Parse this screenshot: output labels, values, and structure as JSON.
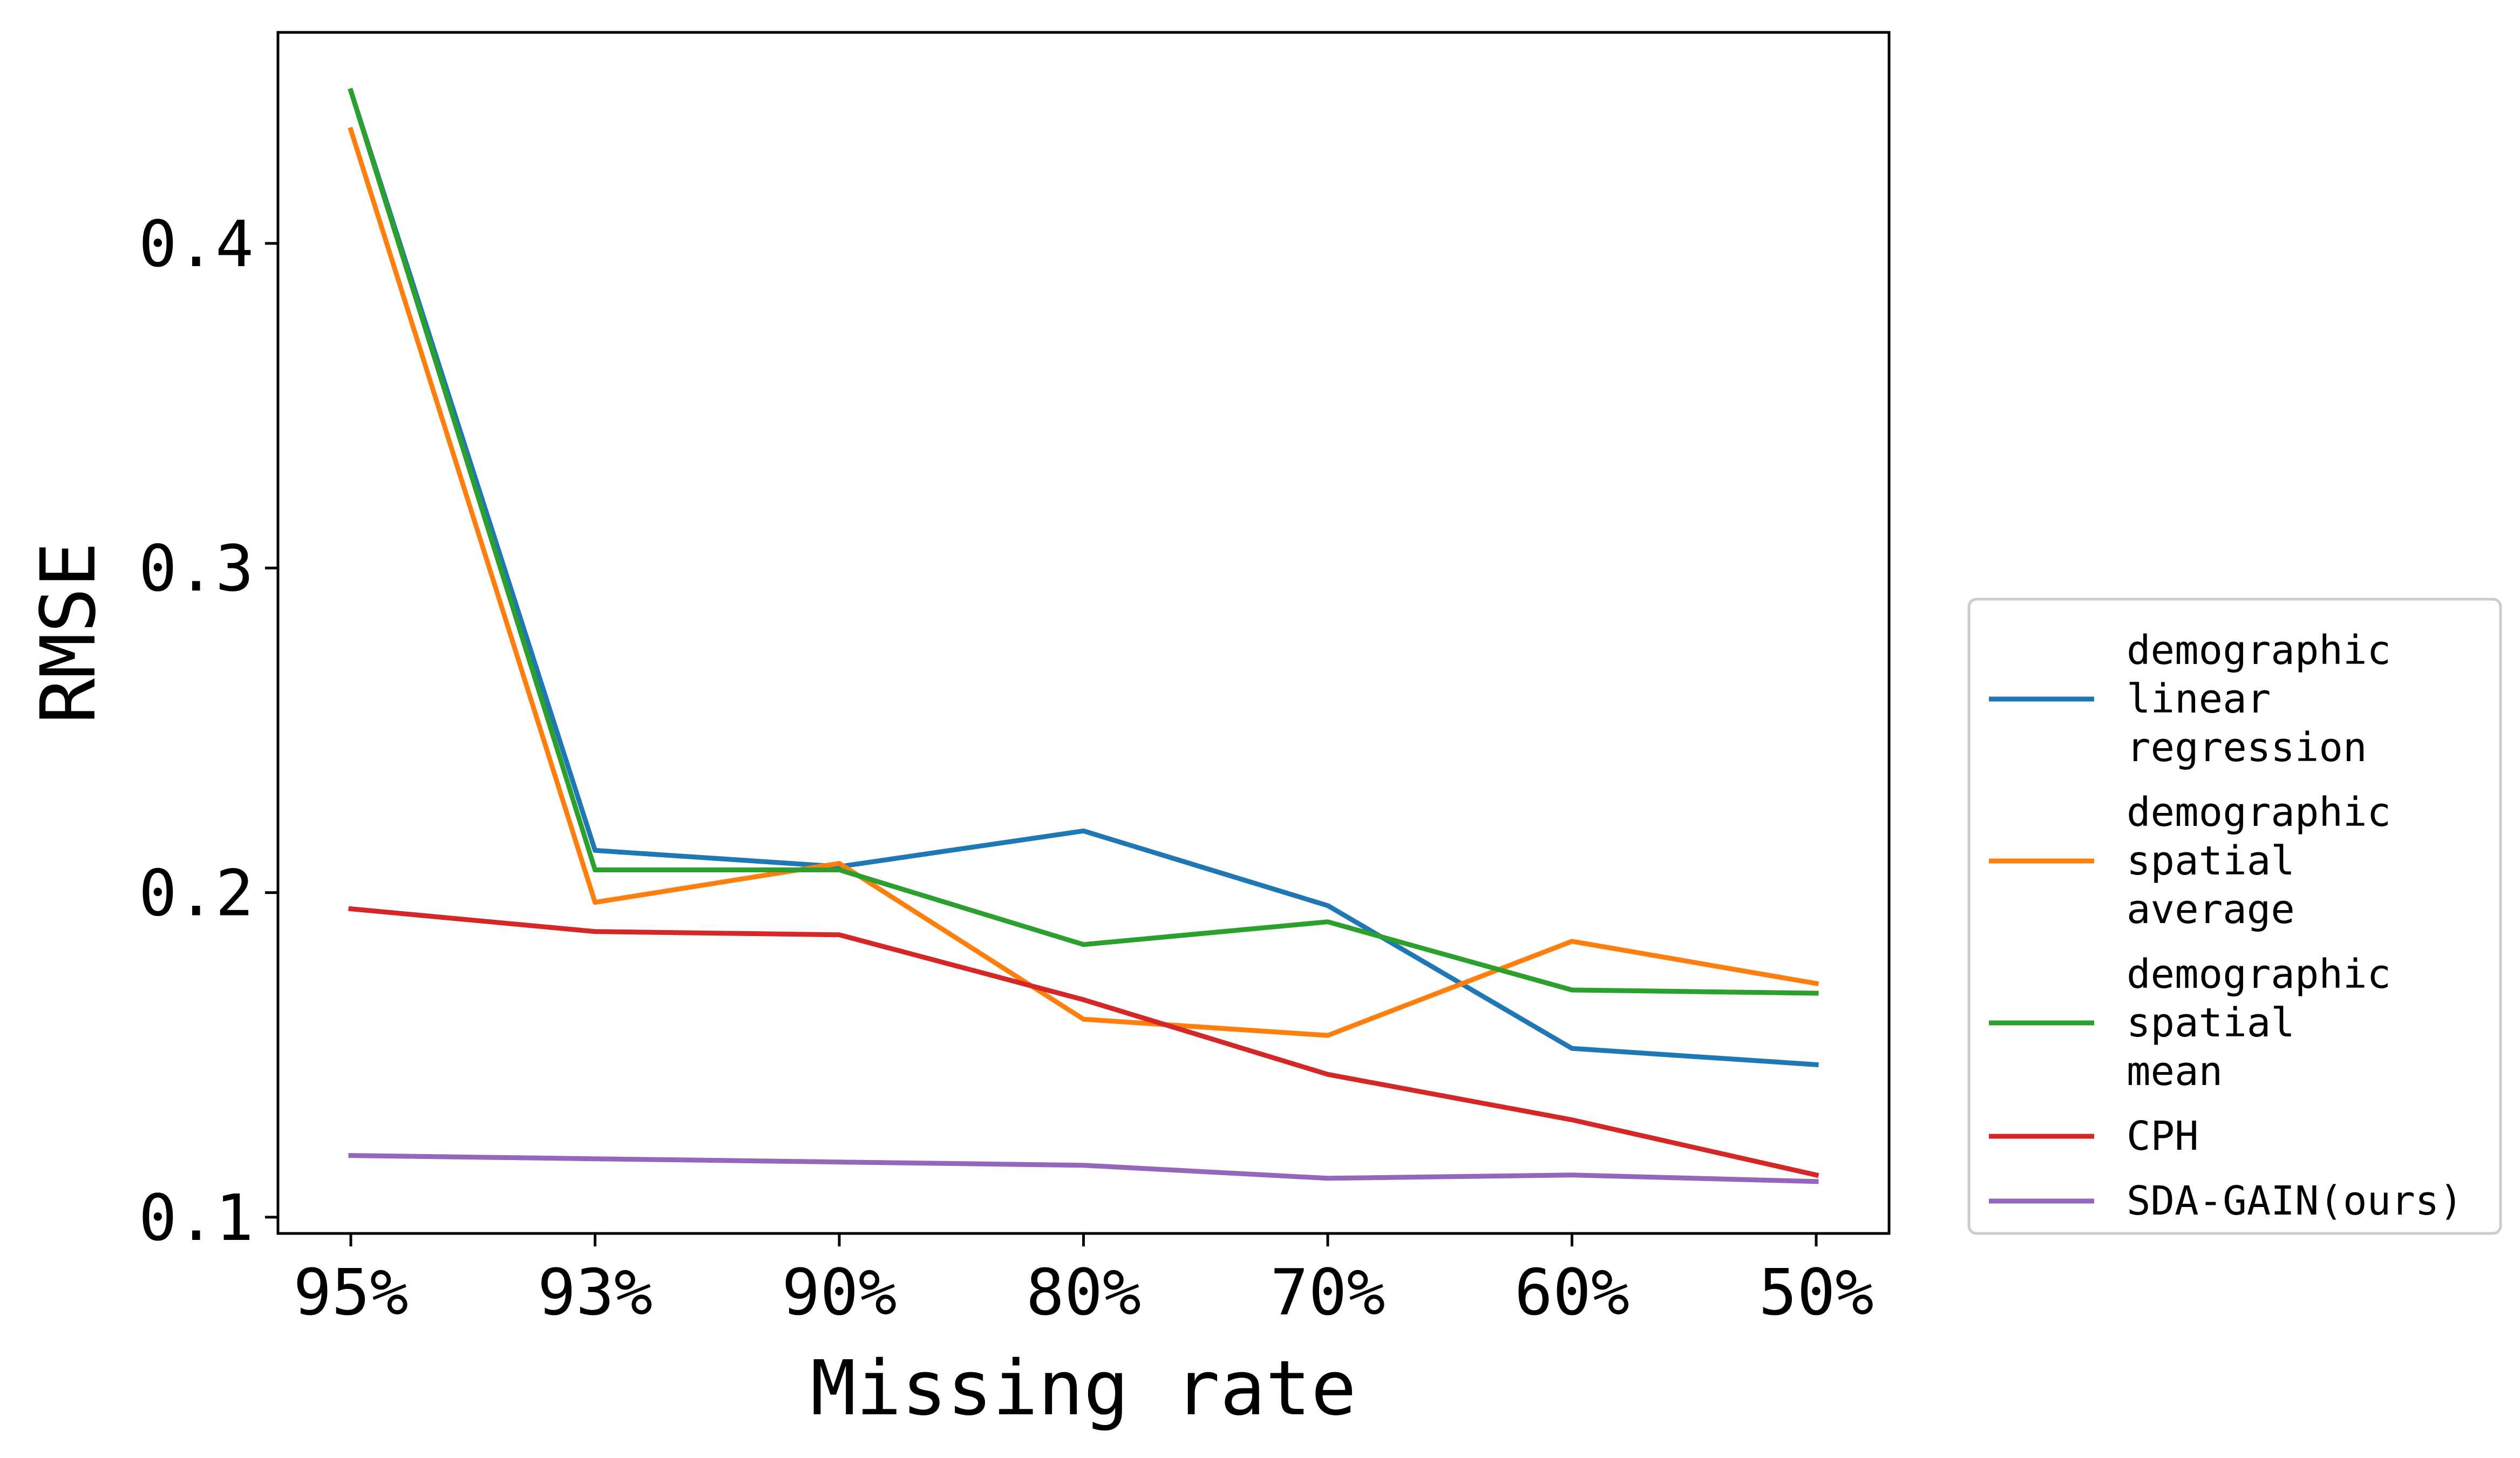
{
  "chart_data": {
    "type": "line",
    "xlabel": "Missing rate",
    "ylabel": "RMSE",
    "categories": [
      "95%",
      "93%",
      "90%",
      "80%",
      "70%",
      "60%",
      "50%"
    ],
    "ylim": [
      0.095,
      0.465
    ],
    "yticks": [
      0.1,
      0.2,
      0.3,
      0.4
    ],
    "ytick_labels": [
      "0.1",
      "0.2",
      "0.3",
      "0.4"
    ],
    "grid": false,
    "legend_position": "outside right, bottom",
    "series": [
      {
        "name": "demographic linear regression",
        "legend_lines": [
          "demographic",
          "linear",
          "regression"
        ],
        "color": "#1f77b4",
        "values": [
          0.447,
          0.213,
          0.208,
          0.219,
          0.196,
          0.152,
          0.147
        ]
      },
      {
        "name": "demographic spatial average",
        "legend_lines": [
          "demographic",
          "spatial",
          "average"
        ],
        "color": "#ff7f0e",
        "values": [
          0.435,
          0.197,
          0.209,
          0.161,
          0.156,
          0.185,
          0.172
        ]
      },
      {
        "name": "demographic spatial mean",
        "legend_lines": [
          "demographic",
          "spatial",
          "mean"
        ],
        "color": "#2ca02c",
        "values": [
          0.447,
          0.207,
          0.207,
          0.184,
          0.191,
          0.17,
          0.169
        ]
      },
      {
        "name": "CPH",
        "legend_lines": [
          "CPH"
        ],
        "color": "#d62728",
        "values": [
          0.195,
          0.188,
          0.187,
          0.167,
          0.144,
          0.13,
          0.113
        ]
      },
      {
        "name": "SDA-GAIN(ours)",
        "legend_lines": [
          "SDA-GAIN(ours)"
        ],
        "color": "#9467bd",
        "values": [
          0.119,
          0.118,
          0.117,
          0.116,
          0.112,
          0.113,
          0.111
        ]
      }
    ]
  }
}
